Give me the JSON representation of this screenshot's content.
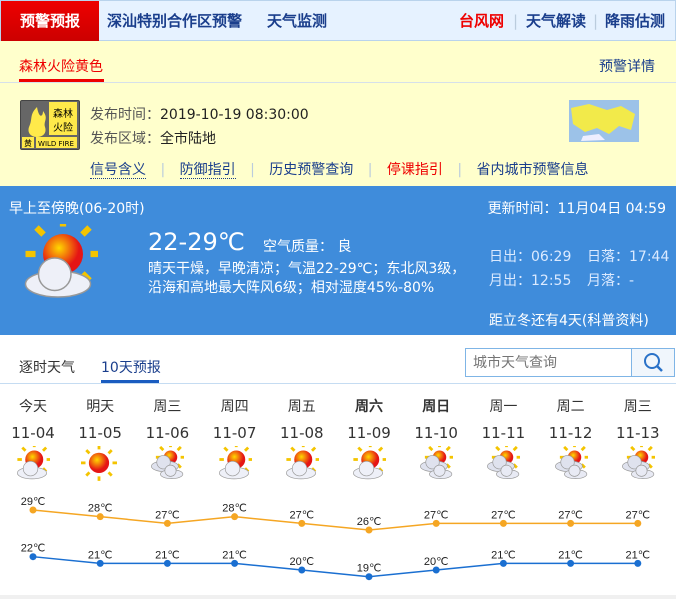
{
  "nav": {
    "home": "预警预报",
    "items": [
      "深汕特别合作区预警",
      "天气监测"
    ],
    "right": [
      {
        "label": "台风网",
        "color": "#e00000"
      },
      {
        "label": "天气解读",
        "color": "#1a3e8c"
      },
      {
        "label": "降雨估测",
        "color": "#1a3e8c"
      }
    ]
  },
  "warning": {
    "tab": "森林火险黄色",
    "detail_link": "预警详情",
    "icon_text": {
      "top": "森林火险",
      "level": "黄",
      "en": "WILD FIRE"
    },
    "time_label": "发布时间：",
    "time": "2019-10-19 08:30:00",
    "area_label": "发布区域：",
    "area": "全市陆地",
    "links": [
      {
        "label": "信号含义",
        "color": "#1a3e8c"
      },
      {
        "label": "防御指引",
        "color": "#1a3e8c"
      },
      {
        "label": "历史预警查询",
        "color": "#1a3e8c"
      },
      {
        "label": "停课指引",
        "color": "#e00000"
      },
      {
        "label": "省内城市预警信息",
        "color": "#1a3e8c"
      }
    ]
  },
  "today": {
    "period": "早上至傍晚(06-20时)",
    "updated": "更新时间：11月04日 04:59",
    "temp": "22-29℃",
    "aqi": "空气质量： 良",
    "desc": "晴天干燥，早晚清凉；气温22-29℃；东北风3级，沿海和高地最大阵风6级；相对湿度45%-80%",
    "sunrise": "日出：06:29",
    "sunset": "日落：17:44",
    "moonrise": "月出：12:55",
    "moonset": "月落：-",
    "solar_term": "距立冬还有4天(科普资料)",
    "icon": "partly-sunny"
  },
  "tabs": [
    {
      "label": "逐时天气",
      "active": false
    },
    {
      "label": "10天预报",
      "active": true
    }
  ],
  "search": {
    "placeholder": "城市天气查询"
  },
  "forecast": [
    {
      "day": "今天",
      "date": "11-04",
      "icon": "partly-sunny",
      "bold": false
    },
    {
      "day": "明天",
      "date": "11-05",
      "icon": "sunny",
      "bold": false
    },
    {
      "day": "周三",
      "date": "11-06",
      "icon": "cloudy",
      "bold": false
    },
    {
      "day": "周四",
      "date": "11-07",
      "icon": "partly-sunny",
      "bold": false
    },
    {
      "day": "周五",
      "date": "11-08",
      "icon": "partly-sunny",
      "bold": false
    },
    {
      "day": "周六",
      "date": "11-09",
      "icon": "partly-sunny",
      "bold": true
    },
    {
      "day": "周日",
      "date": "11-10",
      "icon": "cloudy",
      "bold": true
    },
    {
      "day": "周一",
      "date": "11-11",
      "icon": "cloudy",
      "bold": false
    },
    {
      "day": "周二",
      "date": "11-12",
      "icon": "cloudy",
      "bold": false
    },
    {
      "day": "周三",
      "date": "11-13",
      "icon": "cloudy",
      "bold": false
    }
  ],
  "chart_data": {
    "type": "line",
    "categories": [
      "11-04",
      "11-05",
      "11-06",
      "11-07",
      "11-08",
      "11-09",
      "11-10",
      "11-11",
      "11-12",
      "11-13"
    ],
    "unit": "℃",
    "series": [
      {
        "values": [
          29,
          28,
          27,
          28,
          27,
          26,
          27,
          27,
          27,
          27
        ],
        "color": "#f5a623"
      },
      {
        "values": [
          22,
          21,
          21,
          21,
          20,
          19,
          20,
          21,
          21,
          21
        ],
        "color": "#1a6fd1"
      }
    ]
  }
}
